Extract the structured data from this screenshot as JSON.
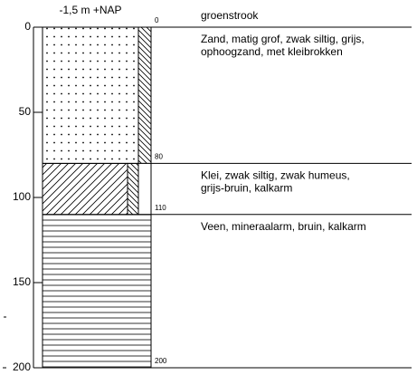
{
  "header": {
    "label": "-1,5  m +NAP"
  },
  "axis": {
    "range": [
      0,
      200
    ],
    "ticks": [
      0,
      50,
      100,
      150,
      200
    ]
  },
  "surface_note": "groenstrook",
  "boundaries": [
    0,
    80,
    110,
    200
  ],
  "layers": [
    {
      "description": [
        "Zand, matig grof, zwak siltig, grijs,",
        "ophoogzand, met kleibrokken"
      ]
    },
    {
      "description": [
        "Klei, zwak siltig, zwak humeus,",
        "grijs-bruin, kalkarm"
      ]
    },
    {
      "description": [
        "Veen, mineraalarm, bruin, kalkarm"
      ]
    }
  ]
}
